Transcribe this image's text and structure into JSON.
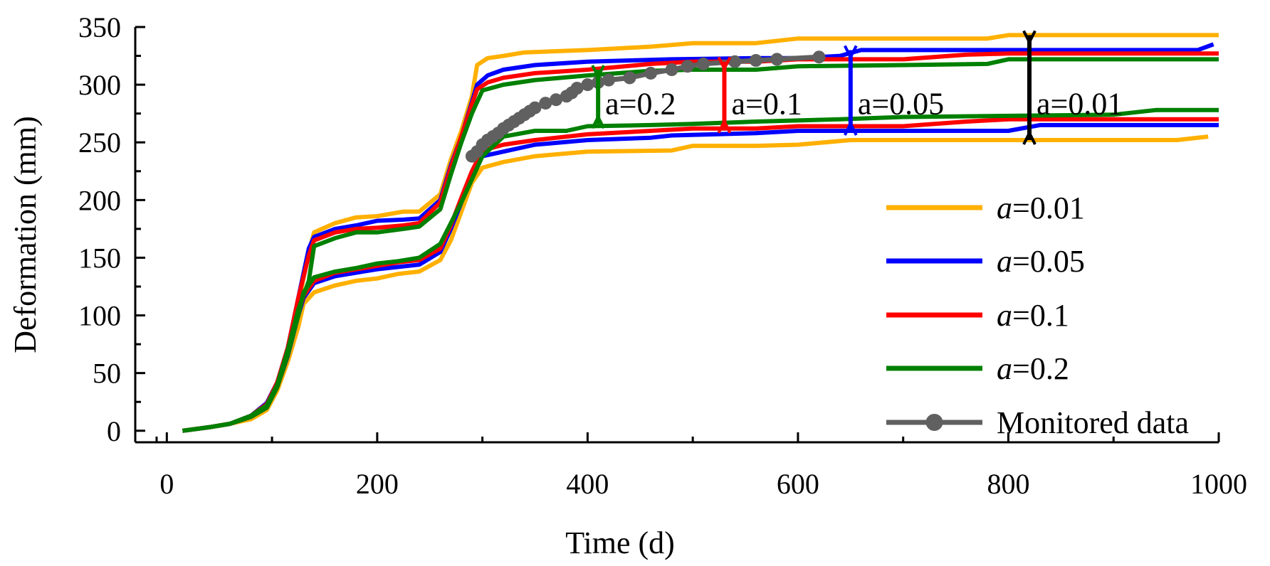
{
  "chart_data": {
    "type": "line",
    "title": "",
    "xlabel": "Time (d)",
    "ylabel": "Deformation (mm)",
    "xlim": [
      -30,
      1000
    ],
    "ylim": [
      -10,
      350
    ],
    "xticks": [
      0,
      200,
      400,
      600,
      800,
      1000
    ],
    "xtick_labels": [
      "0",
      "200",
      "400",
      "600",
      "800",
      "1000"
    ],
    "yticks": [
      0,
      50,
      100,
      150,
      200,
      250,
      300,
      350
    ],
    "ytick_labels": [
      "0",
      "50",
      "100",
      "150",
      "200",
      "250",
      "300",
      "350"
    ],
    "grid": false,
    "legend_position": "right",
    "series": [
      {
        "name_prefix": "a",
        "name_value": "=0.01",
        "color": "#FFB000",
        "upper": [
          [
            15,
            0
          ],
          [
            40,
            3
          ],
          [
            60,
            6
          ],
          [
            80,
            12
          ],
          [
            95,
            22
          ],
          [
            105,
            40
          ],
          [
            115,
            70
          ],
          [
            125,
            110
          ],
          [
            135,
            155
          ],
          [
            140,
            172
          ],
          [
            160,
            180
          ],
          [
            180,
            185
          ],
          [
            200,
            186
          ],
          [
            225,
            190
          ],
          [
            240,
            190
          ],
          [
            260,
            205
          ],
          [
            270,
            235
          ],
          [
            280,
            260
          ],
          [
            290,
            290
          ],
          [
            295,
            317
          ],
          [
            305,
            323
          ],
          [
            320,
            325
          ],
          [
            340,
            328
          ],
          [
            400,
            330
          ],
          [
            460,
            333
          ],
          [
            500,
            336
          ],
          [
            560,
            336
          ],
          [
            600,
            340
          ],
          [
            700,
            340
          ],
          [
            780,
            340
          ],
          [
            800,
            343
          ],
          [
            1000,
            343
          ]
        ],
        "lower": [
          [
            15,
            0
          ],
          [
            40,
            3
          ],
          [
            60,
            6
          ],
          [
            80,
            10
          ],
          [
            95,
            18
          ],
          [
            105,
            35
          ],
          [
            115,
            60
          ],
          [
            125,
            90
          ],
          [
            130,
            110
          ],
          [
            140,
            120
          ],
          [
            160,
            126
          ],
          [
            180,
            130
          ],
          [
            200,
            132
          ],
          [
            220,
            136
          ],
          [
            240,
            138
          ],
          [
            260,
            148
          ],
          [
            270,
            165
          ],
          [
            280,
            190
          ],
          [
            290,
            215
          ],
          [
            300,
            228
          ],
          [
            320,
            233
          ],
          [
            350,
            238
          ],
          [
            400,
            242
          ],
          [
            480,
            243
          ],
          [
            500,
            247
          ],
          [
            560,
            247
          ],
          [
            600,
            248
          ],
          [
            650,
            252
          ],
          [
            700,
            252
          ],
          [
            800,
            252
          ],
          [
            960,
            252
          ],
          [
            990,
            255
          ]
        ]
      },
      {
        "name_prefix": "a",
        "name_value": "=0.05",
        "color": "#0000FF",
        "upper": [
          [
            15,
            0
          ],
          [
            40,
            3
          ],
          [
            60,
            6
          ],
          [
            80,
            13
          ],
          [
            95,
            24
          ],
          [
            105,
            42
          ],
          [
            115,
            72
          ],
          [
            125,
            115
          ],
          [
            135,
            158
          ],
          [
            140,
            168
          ],
          [
            160,
            175
          ],
          [
            180,
            178
          ],
          [
            200,
            182
          ],
          [
            225,
            183
          ],
          [
            240,
            184
          ],
          [
            260,
            200
          ],
          [
            270,
            230
          ],
          [
            280,
            255
          ],
          [
            290,
            285
          ],
          [
            295,
            300
          ],
          [
            305,
            308
          ],
          [
            320,
            313
          ],
          [
            350,
            317
          ],
          [
            400,
            320
          ],
          [
            480,
            322
          ],
          [
            560,
            323
          ],
          [
            600,
            323
          ],
          [
            640,
            325
          ],
          [
            660,
            330
          ],
          [
            800,
            330
          ],
          [
            980,
            330
          ],
          [
            995,
            335
          ]
        ],
        "lower": [
          [
            15,
            0
          ],
          [
            40,
            3
          ],
          [
            60,
            6
          ],
          [
            80,
            12
          ],
          [
            95,
            20
          ],
          [
            105,
            38
          ],
          [
            115,
            65
          ],
          [
            125,
            100
          ],
          [
            130,
            115
          ],
          [
            140,
            128
          ],
          [
            160,
            134
          ],
          [
            180,
            137
          ],
          [
            200,
            140
          ],
          [
            220,
            142
          ],
          [
            240,
            144
          ],
          [
            260,
            155
          ],
          [
            270,
            175
          ],
          [
            280,
            198
          ],
          [
            290,
            222
          ],
          [
            300,
            238
          ],
          [
            320,
            242
          ],
          [
            350,
            248
          ],
          [
            400,
            252
          ],
          [
            460,
            254
          ],
          [
            480,
            256
          ],
          [
            560,
            258
          ],
          [
            600,
            260
          ],
          [
            700,
            260
          ],
          [
            800,
            260
          ],
          [
            830,
            265
          ],
          [
            1000,
            265
          ]
        ]
      },
      {
        "name_prefix": "a",
        "name_value": "=0.1",
        "color": "#FF0000",
        "upper": [
          [
            15,
            0
          ],
          [
            40,
            3
          ],
          [
            60,
            6
          ],
          [
            80,
            13
          ],
          [
            95,
            23
          ],
          [
            105,
            42
          ],
          [
            115,
            72
          ],
          [
            125,
            115
          ],
          [
            135,
            152
          ],
          [
            140,
            165
          ],
          [
            160,
            172
          ],
          [
            180,
            175
          ],
          [
            200,
            176
          ],
          [
            225,
            178
          ],
          [
            240,
            180
          ],
          [
            260,
            198
          ],
          [
            270,
            228
          ],
          [
            280,
            255
          ],
          [
            290,
            283
          ],
          [
            295,
            296
          ],
          [
            305,
            302
          ],
          [
            320,
            306
          ],
          [
            350,
            310
          ],
          [
            400,
            313
          ],
          [
            460,
            318
          ],
          [
            500,
            320
          ],
          [
            560,
            320
          ],
          [
            600,
            322
          ],
          [
            700,
            322
          ],
          [
            760,
            326
          ],
          [
            800,
            327
          ],
          [
            1000,
            327
          ]
        ],
        "lower": [
          [
            15,
            0
          ],
          [
            40,
            3
          ],
          [
            60,
            6
          ],
          [
            80,
            12
          ],
          [
            95,
            20
          ],
          [
            105,
            38
          ],
          [
            115,
            66
          ],
          [
            125,
            102
          ],
          [
            130,
            117
          ],
          [
            140,
            130
          ],
          [
            160,
            137
          ],
          [
            180,
            140
          ],
          [
            200,
            143
          ],
          [
            220,
            146
          ],
          [
            240,
            148
          ],
          [
            260,
            158
          ],
          [
            270,
            178
          ],
          [
            280,
            202
          ],
          [
            290,
            225
          ],
          [
            300,
            243
          ],
          [
            320,
            248
          ],
          [
            350,
            252
          ],
          [
            400,
            257
          ],
          [
            460,
            260
          ],
          [
            500,
            262
          ],
          [
            560,
            262
          ],
          [
            600,
            264
          ],
          [
            700,
            264
          ],
          [
            760,
            268
          ],
          [
            800,
            270
          ],
          [
            1000,
            270
          ]
        ]
      },
      {
        "name_prefix": "a",
        "name_value": "=0.2",
        "color": "#008000",
        "upper": [
          [
            15,
            0
          ],
          [
            40,
            3
          ],
          [
            60,
            6
          ],
          [
            80,
            13
          ],
          [
            95,
            22
          ],
          [
            105,
            40
          ],
          [
            115,
            70
          ],
          [
            125,
            105
          ],
          [
            135,
            130
          ],
          [
            140,
            160
          ],
          [
            160,
            167
          ],
          [
            180,
            172
          ],
          [
            200,
            172
          ],
          [
            225,
            175
          ],
          [
            240,
            177
          ],
          [
            260,
            192
          ],
          [
            270,
            222
          ],
          [
            280,
            250
          ],
          [
            290,
            275
          ],
          [
            295,
            285
          ],
          [
            300,
            295
          ],
          [
            320,
            300
          ],
          [
            350,
            304
          ],
          [
            400,
            308
          ],
          [
            460,
            312
          ],
          [
            500,
            313
          ],
          [
            560,
            313
          ],
          [
            600,
            316
          ],
          [
            700,
            317
          ],
          [
            780,
            318
          ],
          [
            800,
            322
          ],
          [
            1000,
            322
          ]
        ],
        "lower": [
          [
            15,
            0
          ],
          [
            40,
            3
          ],
          [
            60,
            6
          ],
          [
            80,
            12
          ],
          [
            95,
            20
          ],
          [
            105,
            38
          ],
          [
            115,
            66
          ],
          [
            125,
            100
          ],
          [
            130,
            120
          ],
          [
            140,
            133
          ],
          [
            160,
            138
          ],
          [
            180,
            141
          ],
          [
            200,
            145
          ],
          [
            220,
            147
          ],
          [
            240,
            150
          ],
          [
            260,
            162
          ],
          [
            270,
            180
          ],
          [
            280,
            198
          ],
          [
            290,
            218
          ],
          [
            300,
            238
          ],
          [
            320,
            255
          ],
          [
            350,
            260
          ],
          [
            380,
            260
          ],
          [
            400,
            264
          ],
          [
            460,
            265
          ],
          [
            500,
            266
          ],
          [
            560,
            268
          ],
          [
            600,
            269
          ],
          [
            640,
            270
          ],
          [
            700,
            272
          ],
          [
            900,
            274
          ],
          [
            940,
            278
          ],
          [
            1000,
            278
          ]
        ]
      }
    ],
    "monitored": {
      "name": "Monitored data",
      "color": "#606060",
      "points": [
        [
          290,
          238
        ],
        [
          295,
          242
        ],
        [
          300,
          248
        ],
        [
          305,
          252
        ],
        [
          310,
          255
        ],
        [
          315,
          258
        ],
        [
          320,
          262
        ],
        [
          325,
          265
        ],
        [
          330,
          268
        ],
        [
          335,
          271
        ],
        [
          340,
          274
        ],
        [
          345,
          277
        ],
        [
          350,
          280
        ],
        [
          360,
          284
        ],
        [
          370,
          287
        ],
        [
          380,
          290
        ],
        [
          385,
          293
        ],
        [
          390,
          297
        ],
        [
          400,
          300
        ],
        [
          410,
          302
        ],
        [
          420,
          304
        ],
        [
          440,
          306
        ],
        [
          460,
          310
        ],
        [
          480,
          313
        ],
        [
          495,
          316
        ],
        [
          510,
          318
        ],
        [
          540,
          320
        ],
        [
          560,
          321
        ],
        [
          580,
          322
        ],
        [
          620,
          324
        ]
      ]
    },
    "annotations": [
      {
        "label": "a=0.2",
        "x": 410,
        "low": 266,
        "high": 313,
        "color": "#008000"
      },
      {
        "label": "a=0.1",
        "x": 530,
        "low": 262,
        "high": 320,
        "color": "#FF0000"
      },
      {
        "label": "a=0.05",
        "x": 650,
        "low": 260,
        "high": 330,
        "color": "#0000FF"
      },
      {
        "label": "a=0.01",
        "x": 820,
        "low": 252,
        "high": 343,
        "color": "#000000"
      }
    ]
  }
}
